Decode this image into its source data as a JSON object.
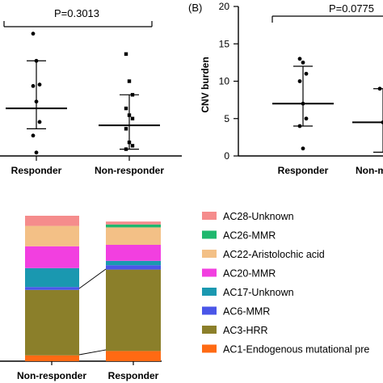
{
  "chart_data": [
    {
      "type": "scatter",
      "categories": [
        "Responder",
        "Non-responder"
      ],
      "pvalue": "P=0.3013",
      "ylim": [
        0,
        22
      ],
      "series": [
        {
          "category": "Responder",
          "points": [
            18,
            14,
            10.5,
            10.3,
            8,
            5,
            3,
            0.5
          ],
          "median": 7,
          "iqr": [
            4,
            14
          ]
        },
        {
          "category": "Non-responder",
          "points": [
            15,
            11,
            9,
            7,
            6,
            5.5,
            4,
            2,
            1.5,
            1
          ],
          "median": 4.5,
          "iqr": [
            1,
            9
          ]
        }
      ]
    },
    {
      "type": "scatter",
      "panel_letter": "(B)",
      "categories": [
        "Responder",
        "Non-m"
      ],
      "ylabel": "CNV burden",
      "pvalue": "P=0.0775",
      "ylim": [
        0,
        20
      ],
      "yticks": [
        "0",
        "5",
        "10",
        "15",
        "20"
      ],
      "series": [
        {
          "category": "Responder",
          "points": [
            13,
            12.5,
            11,
            10,
            7,
            5,
            4,
            1
          ],
          "median": 7,
          "iqr": [
            4,
            12
          ]
        },
        {
          "category": "Non-responder",
          "points": [
            9,
            4.5,
            0.5
          ],
          "median": 4.5,
          "iqr": [
            0.5,
            9
          ]
        }
      ]
    },
    {
      "type": "bar",
      "stacked": true,
      "categories": [
        "Non-responder",
        "Responder"
      ],
      "ylim": [
        0,
        1
      ],
      "series": [
        {
          "name": "AC1-Endogenous mutational pre",
          "color": "#ff6a13",
          "values": [
            0.04,
            0.07
          ]
        },
        {
          "name": "AC3-HRR",
          "color": "#8b7f2a",
          "values": [
            0.45,
            0.56
          ]
        },
        {
          "name": "AC6-MMR",
          "color": "#4a56e8",
          "values": [
            0.02,
            0.03
          ]
        },
        {
          "name": "AC17-Unknown",
          "color": "#1a98b0",
          "values": [
            0.13,
            0.03
          ]
        },
        {
          "name": "AC20-MMR",
          "color": "#f23fe0",
          "values": [
            0.15,
            0.11
          ]
        },
        {
          "name": "AC22-Aristolochic acid",
          "color": "#f3c086",
          "values": [
            0.14,
            0.12
          ]
        },
        {
          "name": "AC26-MMR",
          "color": "#1fb86e",
          "values": [
            0.0,
            0.02
          ]
        },
        {
          "name": "AC28-Unknown",
          "color": "#f58c8c",
          "values": [
            0.07,
            0.02
          ]
        }
      ]
    }
  ]
}
